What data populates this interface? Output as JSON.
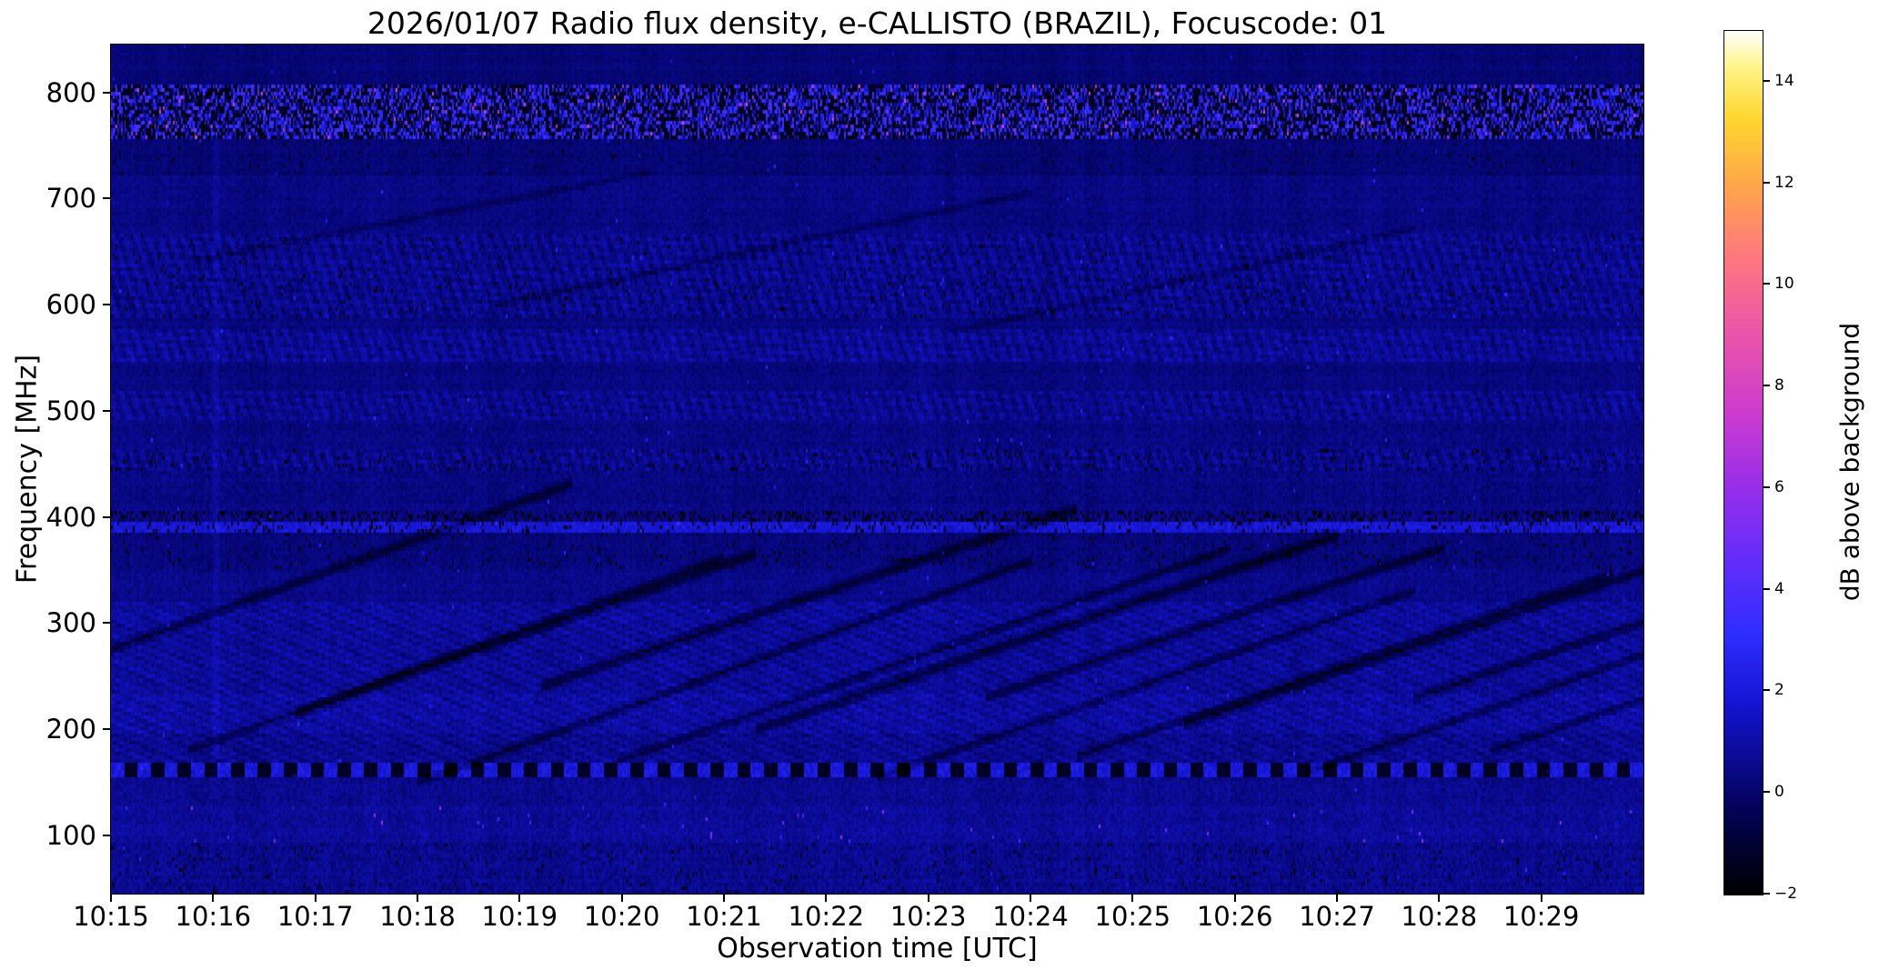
{
  "chart_data": {
    "type": "heatmap",
    "title": "2026/01/07  Radio flux density, e-CALLISTO (BRAZIL), Focuscode: 01",
    "xlabel": "Observation time [UTC]",
    "ylabel": "Frequency [MHz]",
    "x_ticks": [
      "10:15",
      "10:16",
      "10:17",
      "10:18",
      "10:19",
      "10:20",
      "10:21",
      "10:22",
      "10:23",
      "10:24",
      "10:25",
      "10:26",
      "10:27",
      "10:28",
      "10:29"
    ],
    "time_start_utc": "10:15",
    "time_end_utc": "10:30",
    "x_minutes_span": 15,
    "y_ticks": [
      100,
      200,
      300,
      400,
      500,
      600,
      700,
      800
    ],
    "freq_range_mhz": [
      45,
      845
    ],
    "grid": false,
    "legend": "none",
    "colorbar": {
      "label": "dB above background",
      "ticks": [
        -2,
        0,
        2,
        4,
        6,
        8,
        10,
        12,
        14
      ],
      "range": [
        -2,
        15
      ],
      "colormap": "gnuplot2-like (black-blue-magenta-yellow-white)",
      "colormap_stops": [
        [
          0.0,
          [
            0,
            0,
            0
          ]
        ],
        [
          0.1,
          [
            2,
            2,
            90
          ]
        ],
        [
          0.22,
          [
            20,
            20,
            210
          ]
        ],
        [
          0.3,
          [
            45,
            45,
            255
          ]
        ],
        [
          0.38,
          [
            95,
            45,
            250
          ]
        ],
        [
          0.47,
          [
            150,
            45,
            235
          ]
        ],
        [
          0.56,
          [
            205,
            60,
            205
          ]
        ],
        [
          0.65,
          [
            235,
            85,
            170
          ]
        ],
        [
          0.74,
          [
            255,
            120,
            125
          ]
        ],
        [
          0.82,
          [
            255,
            165,
            75
          ]
        ],
        [
          0.9,
          [
            255,
            215,
            45
          ]
        ],
        [
          0.96,
          [
            255,
            245,
            140
          ]
        ],
        [
          1.0,
          [
            255,
            255,
            255
          ]
        ]
      ]
    },
    "background": {
      "base": 0.3,
      "noise": 0.3
    },
    "bands": [
      {
        "name": "top-margin",
        "f_low": 806,
        "f_high": 845,
        "base": 0.15,
        "noise": 0.2
      },
      {
        "name": "strong-rfi-780",
        "f_low": 757,
        "f_high": 806,
        "mode": "rfi",
        "base": -1.5,
        "noise": 0.4,
        "bright_prob": 0.5,
        "bright_min": 0.8,
        "bright_max": 4.2,
        "speckle_prob": 0.012,
        "speckle_min": 5.5,
        "speckle_max": 8.5
      },
      {
        "name": "quiet-740",
        "f_low": 722,
        "f_high": 757,
        "base": 0.1,
        "noise": 0.25,
        "dark_prob": 0.02
      },
      {
        "name": "band-690",
        "f_low": 665,
        "f_high": 722,
        "base": 0.35,
        "noise": 0.3
      },
      {
        "name": "noisy-645",
        "f_low": 628,
        "f_high": 665,
        "base": 0.55,
        "noise": 0.45,
        "striped": true,
        "dark_prob": 0.02
      },
      {
        "name": "noisy-605",
        "f_low": 586,
        "f_high": 628,
        "base": 0.5,
        "noise": 0.5,
        "striped": true,
        "dark_prob": 0.03,
        "speckle_prob": 0.002,
        "speckle_min": 2.0,
        "speckle_max": 3.0
      },
      {
        "name": "gap-580",
        "f_low": 578,
        "f_high": 586,
        "base": 0.3,
        "noise": 0.3
      },
      {
        "name": "noisy-560",
        "f_low": 545,
        "f_high": 578,
        "base": 0.65,
        "noise": 0.45,
        "striped": true
      },
      {
        "name": "gap-530",
        "f_low": 520,
        "f_high": 545,
        "base": 0.3,
        "noise": 0.3
      },
      {
        "name": "noisy-505",
        "f_low": 492,
        "f_high": 520,
        "base": 0.55,
        "noise": 0.45,
        "striped": true
      },
      {
        "name": "gap-475",
        "f_low": 465,
        "f_high": 492,
        "base": 0.35,
        "noise": 0.35
      },
      {
        "name": "dark-speckle-455",
        "f_low": 443,
        "f_high": 465,
        "base": 0.5,
        "noise": 0.5,
        "striped": true,
        "dark_prob": 0.06
      },
      {
        "name": "gap-420",
        "f_low": 404,
        "f_high": 443,
        "base": 0.35,
        "noise": 0.35
      },
      {
        "name": "dark-dash-400",
        "f_low": 396,
        "f_high": 404,
        "base": 0.35,
        "noise": 0.4,
        "dark_prob": 0.3
      },
      {
        "name": "bright-line-390",
        "f_low": 384,
        "f_high": 396,
        "base": 1.9,
        "noise": 0.45,
        "dark_prob": 0.12,
        "speckle_prob": 0.004,
        "speckle_min": 2.5,
        "speckle_max": 3.5
      },
      {
        "name": "dark-365",
        "f_low": 350,
        "f_high": 384,
        "base": 0.25,
        "noise": 0.3,
        "dark_prob": 0.04
      },
      {
        "name": "band-335",
        "f_low": 320,
        "f_high": 350,
        "base": 0.45,
        "noise": 0.35
      },
      {
        "name": "corrugated-275",
        "f_low": 235,
        "f_high": 320,
        "base": 0.75,
        "noise": 0.4,
        "corrugated": true
      },
      {
        "name": "bright-215",
        "f_low": 195,
        "f_high": 235,
        "base": 0.9,
        "noise": 0.45,
        "corrugated": true
      },
      {
        "name": "band-180",
        "f_low": 168,
        "f_high": 195,
        "base": 0.6,
        "noise": 0.4,
        "corrugated": true
      },
      {
        "name": "dashed-line-160",
        "f_low": 154,
        "f_high": 168,
        "mode": "dashed",
        "dash_period": 8,
        "dash_high": 2.0,
        "dash_low": -1.6,
        "base": 0.5,
        "noise": 0.4
      },
      {
        "name": "band-140",
        "f_low": 128,
        "f_high": 154,
        "base": 0.55,
        "noise": 0.4
      },
      {
        "name": "speckled-110",
        "f_low": 92,
        "f_high": 128,
        "base": 0.75,
        "noise": 0.45,
        "speckle_prob": 0.005,
        "speckle_min": 3.0,
        "speckle_max": 6.5
      },
      {
        "name": "bottom-70",
        "f_low": 45,
        "f_high": 92,
        "base": 0.55,
        "noise": 0.5,
        "dark_prob": 0.03
      }
    ],
    "streaks": [
      {
        "t0": 0.0,
        "f0": 275,
        "slope": 520,
        "len": 0.3,
        "depth": 1.5,
        "width": 7
      },
      {
        "t0": 0.05,
        "f0": 180,
        "slope": 520,
        "len": 0.35,
        "depth": 1.3,
        "width": 6
      },
      {
        "t0": 0.12,
        "f0": 215,
        "slope": 500,
        "len": 0.3,
        "depth": 1.6,
        "width": 7
      },
      {
        "t0": 0.2,
        "f0": 150,
        "slope": 520,
        "len": 0.4,
        "depth": 1.5,
        "width": 6
      },
      {
        "t0": 0.28,
        "f0": 240,
        "slope": 480,
        "len": 0.35,
        "depth": 1.6,
        "width": 8
      },
      {
        "t0": 0.33,
        "f0": 170,
        "slope": 500,
        "len": 0.4,
        "depth": 1.4,
        "width": 6
      },
      {
        "t0": 0.42,
        "f0": 200,
        "slope": 480,
        "len": 0.38,
        "depth": 1.7,
        "width": 8
      },
      {
        "t0": 0.5,
        "f0": 155,
        "slope": 500,
        "len": 0.35,
        "depth": 1.4,
        "width": 6
      },
      {
        "t0": 0.57,
        "f0": 230,
        "slope": 470,
        "len": 0.3,
        "depth": 1.5,
        "width": 7
      },
      {
        "t0": 0.63,
        "f0": 175,
        "slope": 490,
        "len": 0.35,
        "depth": 1.4,
        "width": 6
      },
      {
        "t0": 0.7,
        "f0": 205,
        "slope": 480,
        "len": 0.33,
        "depth": 1.6,
        "width": 7
      },
      {
        "t0": 0.78,
        "f0": 160,
        "slope": 500,
        "len": 0.35,
        "depth": 1.4,
        "width": 6
      },
      {
        "t0": 0.85,
        "f0": 230,
        "slope": 470,
        "len": 0.28,
        "depth": 1.5,
        "width": 7
      },
      {
        "t0": 0.9,
        "f0": 180,
        "slope": 490,
        "len": 0.3,
        "depth": 1.3,
        "width": 6
      },
      {
        "t0": 0.05,
        "f0": 640,
        "slope": 280,
        "len": 0.3,
        "depth": 0.7,
        "width": 5
      },
      {
        "t0": 0.25,
        "f0": 600,
        "slope": 300,
        "len": 0.35,
        "depth": 0.8,
        "width": 5
      },
      {
        "t0": 0.55,
        "f0": 575,
        "slope": 320,
        "len": 0.3,
        "depth": 0.7,
        "width": 5
      }
    ],
    "bright_columns": [
      {
        "t": 0.068,
        "f_low": 150,
        "f_high": 760,
        "boost": 0.45
      }
    ]
  }
}
